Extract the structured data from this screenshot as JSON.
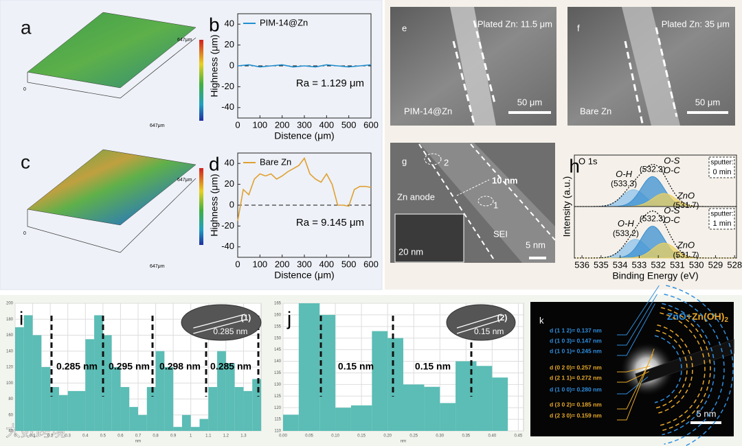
{
  "panels": {
    "a": {
      "letter": "a",
      "scale_labels": [
        "647μm",
        "647μm",
        "0"
      ]
    },
    "c": {
      "letter": "c",
      "scale_labels": [
        "647μm",
        "647μm",
        "0"
      ]
    },
    "e": {
      "letter": "e",
      "caption": "Plated Zn: 11.5 μm",
      "sample": "PIM-14@Zn",
      "scale_bar": "50 μm"
    },
    "f": {
      "letter": "f",
      "caption": "Plated Zn: 35 μm",
      "sample": "Bare Zn",
      "scale_bar": "50 μm"
    },
    "g": {
      "letter": "g",
      "labels": [
        "Zn anode",
        "10 nm",
        "SEI",
        "5 nm",
        "20 nm",
        "1",
        "2"
      ]
    },
    "k": {
      "letter": "k",
      "title_parts": [
        "ZnO",
        "+Zn(OH)",
        "2"
      ],
      "scale_bar": "5 nm",
      "rings": [
        {
          "text": "d (1 1 2)= 0.137 nm",
          "color": "#2f8fe0"
        },
        {
          "text": "d (1 0 3)= 0.147 nm",
          "color": "#2f8fe0"
        },
        {
          "text": "d (1 0 1)= 0.245 nm",
          "color": "#2f8fe0"
        },
        {
          "text": "d (0 2 0)= 0.257 nm",
          "color": "#e8a92a"
        },
        {
          "text": "d (2 1 1)= 0.272 nm",
          "color": "#e8a92a"
        },
        {
          "text": "d (1 0 0)= 0.280 nm",
          "color": "#2f8fe0"
        },
        {
          "text": "d (3 0 2)= 0.185 nm",
          "color": "#e8a92a"
        },
        {
          "text": "d (2 3 0)= 0.159 nm",
          "color": "#e8a92a"
        }
      ]
    }
  },
  "watermark": "大数跨境",
  "chart_data": [
    {
      "type": "line",
      "letter": "b",
      "xlabel": "Distence (μm)",
      "ylabel": "Highness (μm)",
      "annotation": "Ra = 1.129 μm",
      "x": [
        0,
        50,
        100,
        150,
        200,
        250,
        300,
        350,
        400,
        450,
        500,
        550,
        600
      ],
      "series": [
        {
          "name": "PIM-14@Zn",
          "color": "#1f8fd0",
          "values": [
            0,
            1,
            -1,
            0,
            1,
            -1,
            0,
            -1,
            1,
            0,
            -1,
            0,
            1
          ]
        }
      ],
      "xlim": [
        0,
        600
      ],
      "ylim": [
        -50,
        50
      ],
      "xticks": [
        0,
        100,
        200,
        300,
        400,
        500,
        600
      ],
      "yticks": [
        -40,
        -20,
        0,
        20,
        40
      ]
    },
    {
      "type": "line",
      "letter": "d",
      "xlabel": "Distence (μm)",
      "ylabel": "Highness (μm)",
      "annotation": "Ra = 9.145 μm",
      "x": [
        0,
        25,
        50,
        75,
        100,
        125,
        150,
        175,
        200,
        225,
        250,
        275,
        300,
        325,
        350,
        375,
        400,
        425,
        450,
        475,
        500,
        525,
        550,
        575,
        600
      ],
      "series": [
        {
          "name": "Bare Zn",
          "color": "#e0a030",
          "values": [
            -15,
            15,
            10,
            25,
            30,
            28,
            30,
            25,
            28,
            32,
            35,
            38,
            45,
            30,
            25,
            22,
            30,
            20,
            0,
            0,
            -1,
            15,
            18,
            18,
            17
          ]
        }
      ],
      "xlim": [
        0,
        600
      ],
      "ylim": [
        -50,
        50
      ],
      "xticks": [
        0,
        100,
        200,
        300,
        400,
        500,
        600
      ],
      "yticks": [
        -40,
        -20,
        0,
        20,
        40
      ]
    },
    {
      "type": "xps",
      "letter": "h",
      "xlabel": "Binding Energy (eV)",
      "ylabel": "Intensity (a.u.)",
      "xlim": [
        536.4,
        527.9
      ],
      "xticks": [
        536,
        535,
        534,
        533,
        532,
        531,
        530,
        529,
        528
      ],
      "ylim": [
        0,
        1.3
      ],
      "subplots": [
        {
          "core": "O 1s",
          "sputter": "sputter:",
          "sputter_time": "0 min",
          "peaks": [
            {
              "names": [
                "O-H"
              ],
              "center": 533.3,
              "center_label": "(533.3)",
              "height": 0.45,
              "color": "#8cc2ea"
            },
            {
              "names": [
                "O-S",
                "O-C"
              ],
              "center": 532.3,
              "center_label": "(532.3)",
              "height": 0.8,
              "color": "#3b8fd0"
            },
            {
              "names": [
                "ZnO"
              ],
              "center": 531.7,
              "center_label": "(531.7)",
              "height": 0.35,
              "color": "#ecd060"
            }
          ]
        },
        {
          "sputter": "sputter:",
          "sputter_time": "1 min",
          "peaks": [
            {
              "names": [
                "O-H"
              ],
              "center": 533.2,
              "center_label": "(533.2)",
              "height": 0.5,
              "color": "#8cc2ea"
            },
            {
              "names": [
                "O-S",
                "O-C"
              ],
              "center": 532.3,
              "center_label": "(532.3)",
              "height": 0.85,
              "color": "#3b8fd0"
            },
            {
              "names": [
                "ZnO"
              ],
              "center": 531.7,
              "center_label": "(531.7)",
              "height": 0.4,
              "color": "#ecd060"
            }
          ]
        }
      ]
    },
    {
      "type": "histogram",
      "letter": "i",
      "xlabel": "nm",
      "color": "#5bbdb5",
      "bins": [
        0,
        0.05,
        0.1,
        0.15,
        0.2,
        0.25,
        0.3,
        0.35,
        0.4,
        0.45,
        0.5,
        0.55,
        0.6,
        0.65,
        0.7,
        0.75,
        0.8,
        0.85,
        0.9,
        0.95,
        1,
        1.05,
        1.1,
        1.15,
        1.2,
        1.25,
        1.3,
        1.35,
        1.4
      ],
      "counts": [
        170,
        185,
        160,
        120,
        95,
        85,
        90,
        90,
        155,
        185,
        160,
        120,
        95,
        70,
        60,
        95,
        140,
        120,
        45,
        60,
        45,
        55,
        95,
        140,
        125,
        95,
        90,
        105
      ],
      "xlim": [
        0,
        1.4
      ],
      "ylim": [
        40,
        200
      ],
      "xticks": [
        0,
        0.1,
        0.2,
        0.3,
        0.4,
        0.5,
        0.6,
        0.7,
        0.8,
        0.9,
        1,
        1.1,
        1.2,
        1.3
      ],
      "yticks": [
        40,
        60,
        80,
        100,
        120,
        140,
        160,
        180,
        200
      ],
      "spacings": [
        "0.285 nm",
        "0.295 nm",
        "0.298 nm",
        "0.285 nm"
      ],
      "inset_label": "(1)",
      "inset_spacing": "0.285 nm"
    },
    {
      "type": "histogram",
      "letter": "j",
      "xlabel": "nm",
      "color": "#5bbdb5",
      "bins": [
        0,
        0.03,
        0.07,
        0.1,
        0.13,
        0.17,
        0.2,
        0.23,
        0.27,
        0.3,
        0.33,
        0.37,
        0.4,
        0.43
      ],
      "counts": [
        117,
        165,
        160,
        120,
        121,
        153,
        150,
        130,
        129,
        122,
        140,
        138,
        133
      ],
      "xlim": [
        0,
        0.46
      ],
      "ylim": [
        110,
        165
      ],
      "xticks": [
        {
          "value": 0,
          "label": "0.00"
        },
        {
          "value": 0.05,
          "label": "0.05"
        },
        {
          "value": 0.1,
          "label": "0.10"
        },
        {
          "value": 0.15,
          "label": "0.15"
        },
        {
          "value": 0.2,
          "label": "0.20"
        },
        {
          "value": 0.25,
          "label": "0.25"
        },
        {
          "value": 0.3,
          "label": "0.30"
        },
        {
          "value": 0.35,
          "label": "0.35"
        },
        {
          "value": 0.4,
          "label": "0.40"
        },
        {
          "value": 0.45,
          "label": "0.45"
        }
      ],
      "yticks": [
        110,
        115,
        120,
        125,
        130,
        135,
        140,
        145,
        150,
        155,
        160,
        165
      ],
      "spacings": [
        "0.15 nm",
        "0.15 nm"
      ],
      "inset_label": "(2)",
      "inset_spacing": "0.15 nm"
    }
  ]
}
